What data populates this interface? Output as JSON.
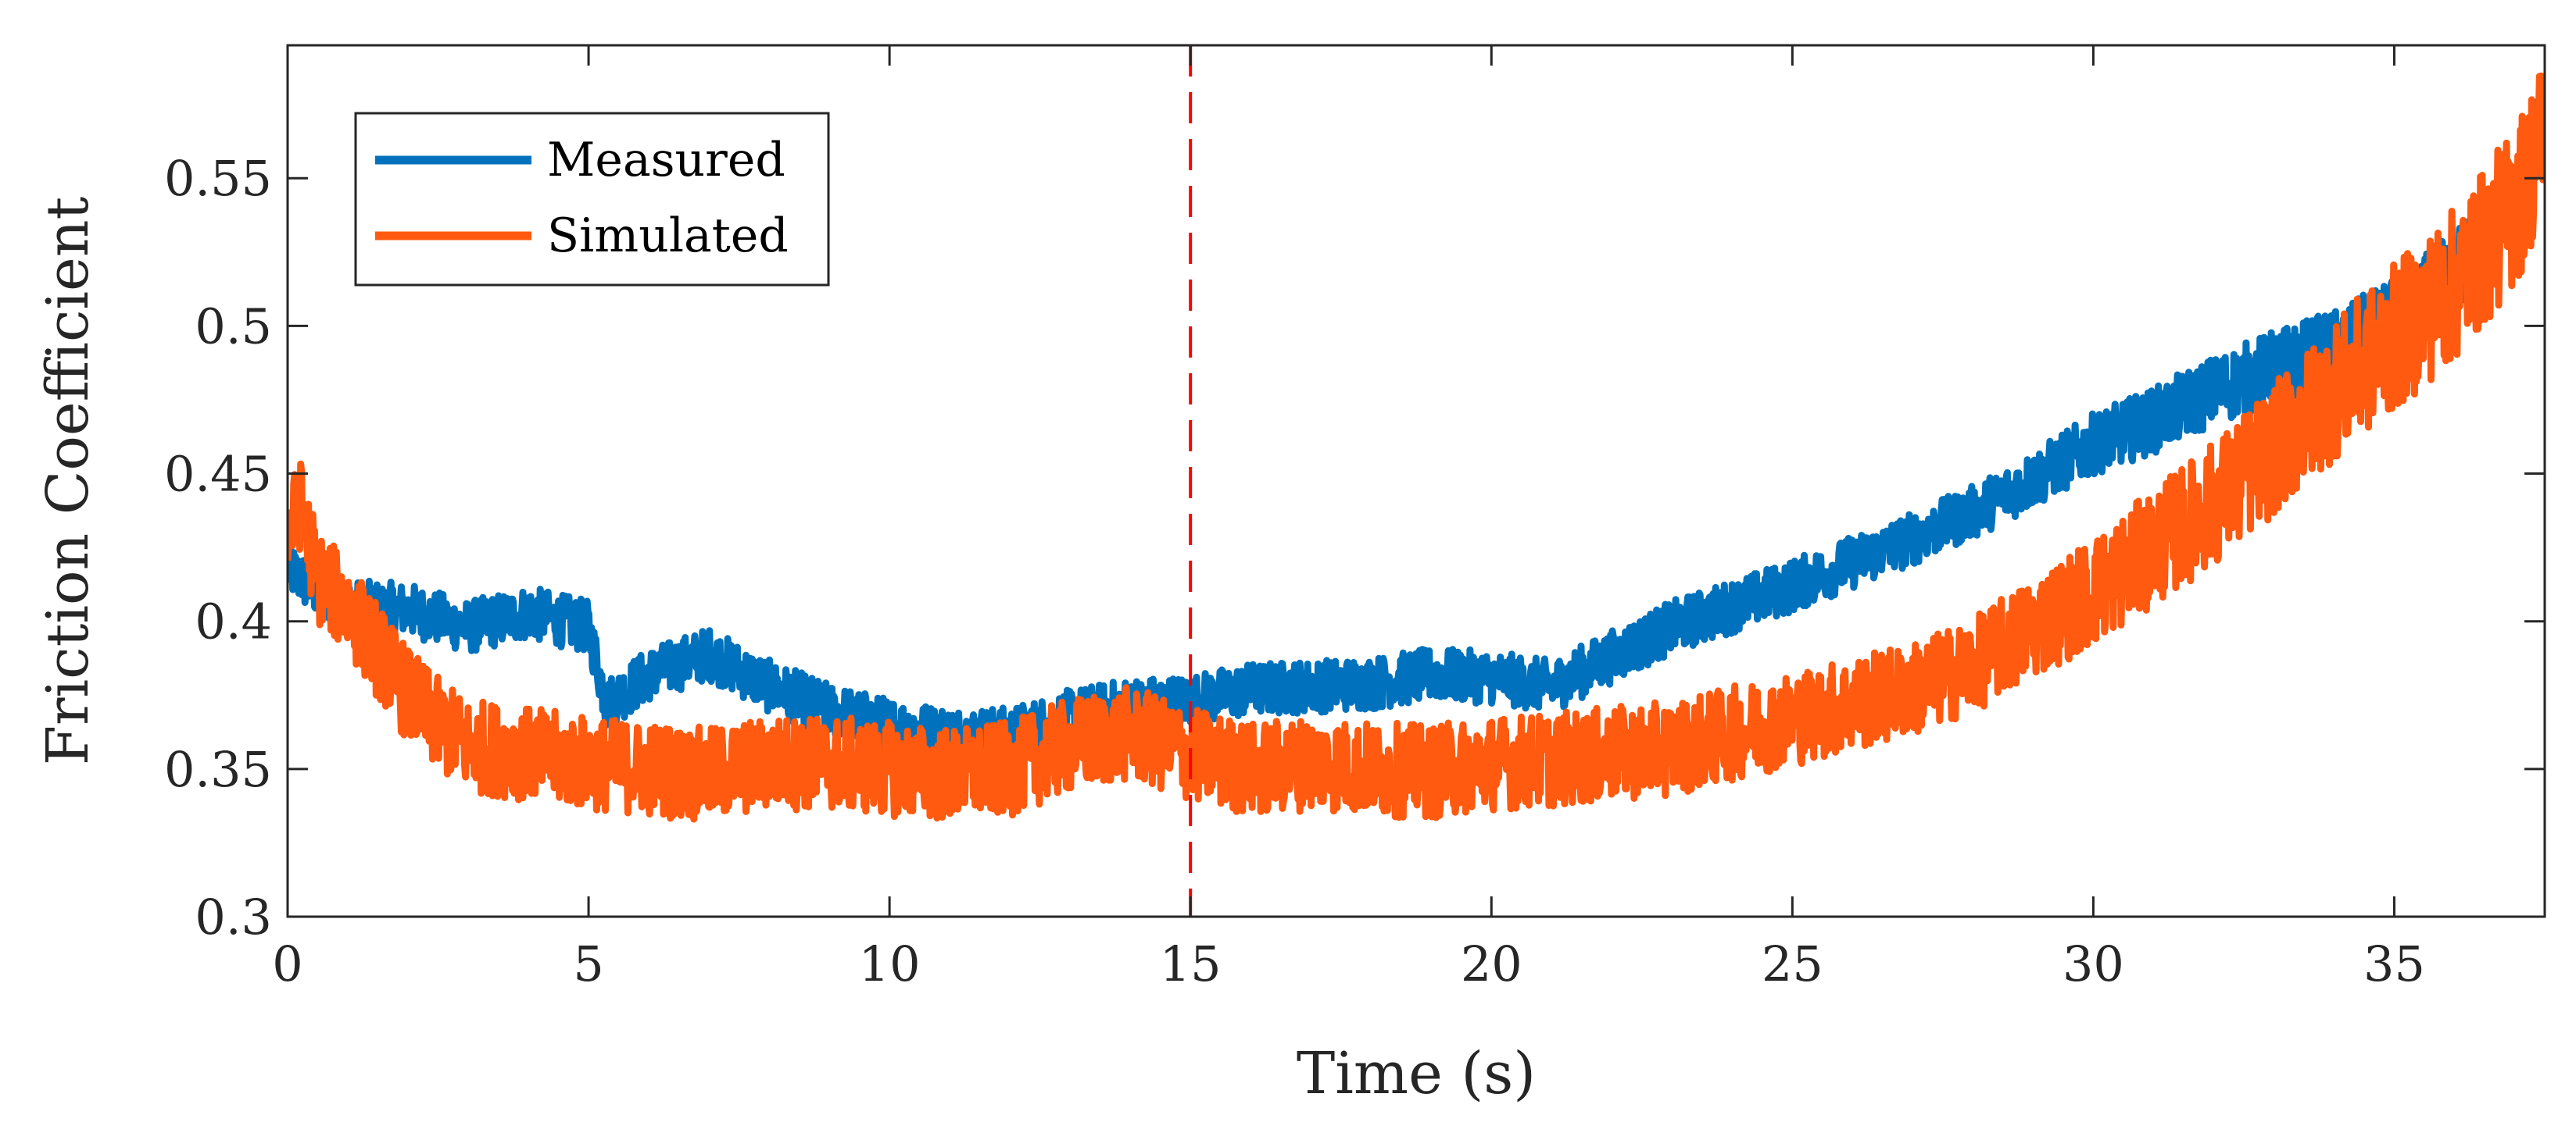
{
  "chart_data": {
    "type": "line",
    "title": "",
    "xlabel": "Time (s)",
    "ylabel": "Friction Coefficient",
    "xlim": [
      0,
      37.5
    ],
    "ylim": [
      0.3,
      0.595
    ],
    "xticks": [
      0,
      5,
      10,
      15,
      20,
      25,
      30,
      35
    ],
    "yticks": [
      0.3,
      0.35,
      0.4,
      0.45,
      0.5,
      0.55
    ],
    "xtick_labels": [
      "0",
      "5",
      "10",
      "15",
      "20",
      "25",
      "30",
      "35"
    ],
    "ytick_labels": [
      "0.3",
      "0.35",
      "0.4",
      "0.45",
      "0.5",
      "0.55"
    ],
    "grid": false,
    "legend_position": "top-left",
    "vertical_marker": {
      "x": 15,
      "style": "dashed",
      "color": "#ff0000"
    },
    "series": [
      {
        "name": "Measured",
        "color": "#0072bd",
        "noise": 0.009,
        "x": [
          0,
          0.5,
          1,
          2,
          3,
          4,
          5,
          5.3,
          6,
          7,
          8,
          9,
          10,
          11,
          12,
          13,
          14,
          15,
          16,
          17,
          18,
          19,
          20,
          21,
          22,
          23,
          24,
          25,
          26,
          27,
          28,
          29,
          30,
          31,
          32,
          33,
          34,
          35,
          36,
          37,
          37.5
        ],
        "values": [
          0.418,
          0.41,
          0.405,
          0.404,
          0.398,
          0.403,
          0.398,
          0.372,
          0.382,
          0.389,
          0.378,
          0.37,
          0.365,
          0.362,
          0.362,
          0.368,
          0.372,
          0.373,
          0.377,
          0.378,
          0.379,
          0.382,
          0.381,
          0.378,
          0.388,
          0.398,
          0.405,
          0.412,
          0.42,
          0.428,
          0.437,
          0.448,
          0.46,
          0.468,
          0.478,
          0.486,
          0.492,
          0.502,
          0.518,
          0.54,
          0.57
        ]
      },
      {
        "name": "Simulated",
        "color": "#ff5a0f",
        "noise": 0.016,
        "x": [
          0,
          0.2,
          0.5,
          1,
          1.5,
          2,
          2.5,
          3,
          4,
          5,
          6,
          7,
          8,
          9,
          10,
          11,
          12,
          13,
          14,
          15,
          16,
          17,
          18,
          19,
          20,
          21,
          22,
          23,
          24,
          25,
          26,
          27,
          28,
          29,
          30,
          31,
          32,
          33,
          34,
          35,
          36,
          37,
          37.5
        ],
        "values": [
          0.428,
          0.44,
          0.415,
          0.405,
          0.39,
          0.375,
          0.365,
          0.358,
          0.355,
          0.352,
          0.35,
          0.348,
          0.352,
          0.352,
          0.35,
          0.348,
          0.35,
          0.358,
          0.362,
          0.355,
          0.35,
          0.352,
          0.35,
          0.349,
          0.352,
          0.353,
          0.355,
          0.357,
          0.362,
          0.367,
          0.372,
          0.377,
          0.385,
          0.398,
          0.41,
          0.425,
          0.44,
          0.458,
          0.478,
          0.496,
          0.514,
          0.54,
          0.565
        ]
      }
    ]
  }
}
